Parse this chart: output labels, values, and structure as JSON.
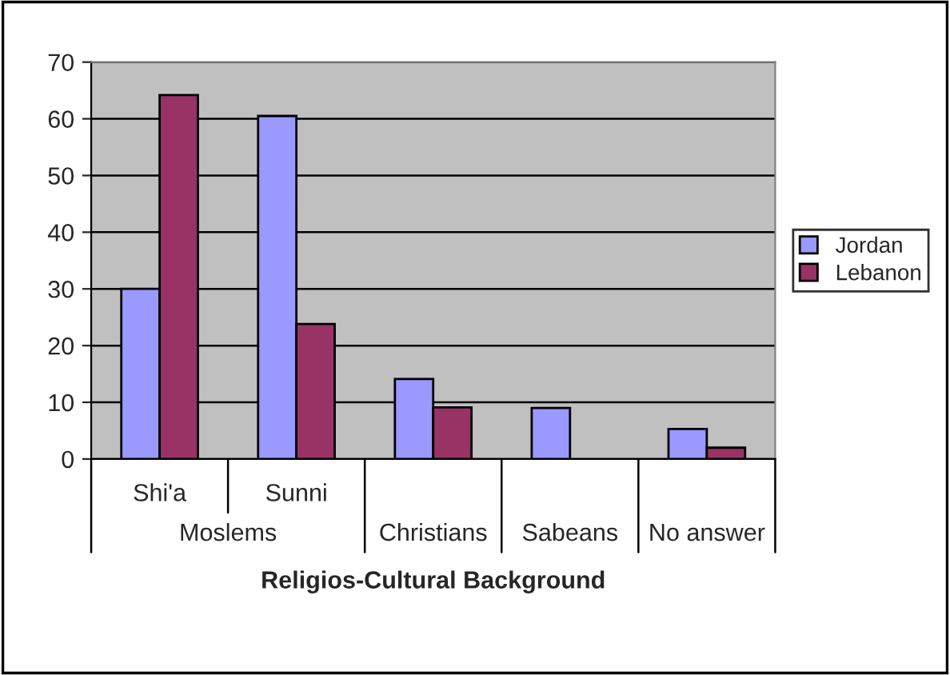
{
  "chart_data": {
    "type": "bar",
    "xlabel": "Religios-Cultural Background",
    "categories": [
      "Shi'a",
      "Sunni",
      "Christians",
      "Sabeans",
      "No answer"
    ],
    "series": [
      {
        "name": "Jordan",
        "color": "#9999ff",
        "values": [
          30.0,
          60.5,
          14.1,
          9.0,
          5.3
        ]
      },
      {
        "name": "Lebanon",
        "color": "#993366",
        "values": [
          64.2,
          23.8,
          9.1,
          null,
          2.0
        ]
      }
    ],
    "annotations": [
      "Moslems"
    ],
    "ylim": [
      0,
      70
    ],
    "yticks": [
      0,
      10,
      20,
      30,
      40,
      50,
      60,
      70
    ],
    "grid": "y",
    "legend": "right"
  }
}
